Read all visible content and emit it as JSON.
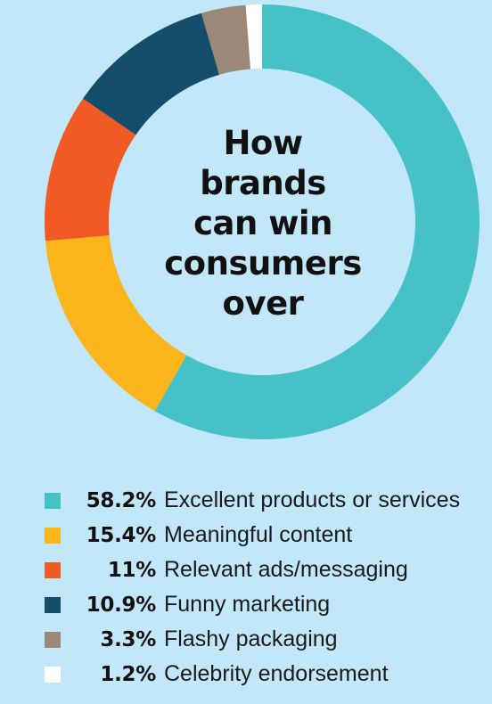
{
  "chart_data": {
    "type": "pie",
    "title": "How brands can win consumers over",
    "title_lines": [
      "How",
      "brands",
      "can win",
      "consumers",
      "over"
    ],
    "categories": [
      "Excellent products or services",
      "Meaningful content",
      "Relevant ads/messaging",
      "Funny marketing",
      "Flashy packaging",
      "Celebrity endorsement"
    ],
    "values": [
      58.2,
      15.4,
      11,
      10.9,
      3.3,
      1.2
    ],
    "value_labels": [
      "58.2%",
      "15.4%",
      "11%",
      "10.9%",
      "3.3%",
      "1.2%"
    ],
    "colors": [
      "#46c1c7",
      "#fbb41a",
      "#f15a24",
      "#154e6b",
      "#9c8878",
      "#ffffff"
    ],
    "donut": true,
    "legend_position": "bottom-left"
  },
  "background_color": "#c1e7f8"
}
